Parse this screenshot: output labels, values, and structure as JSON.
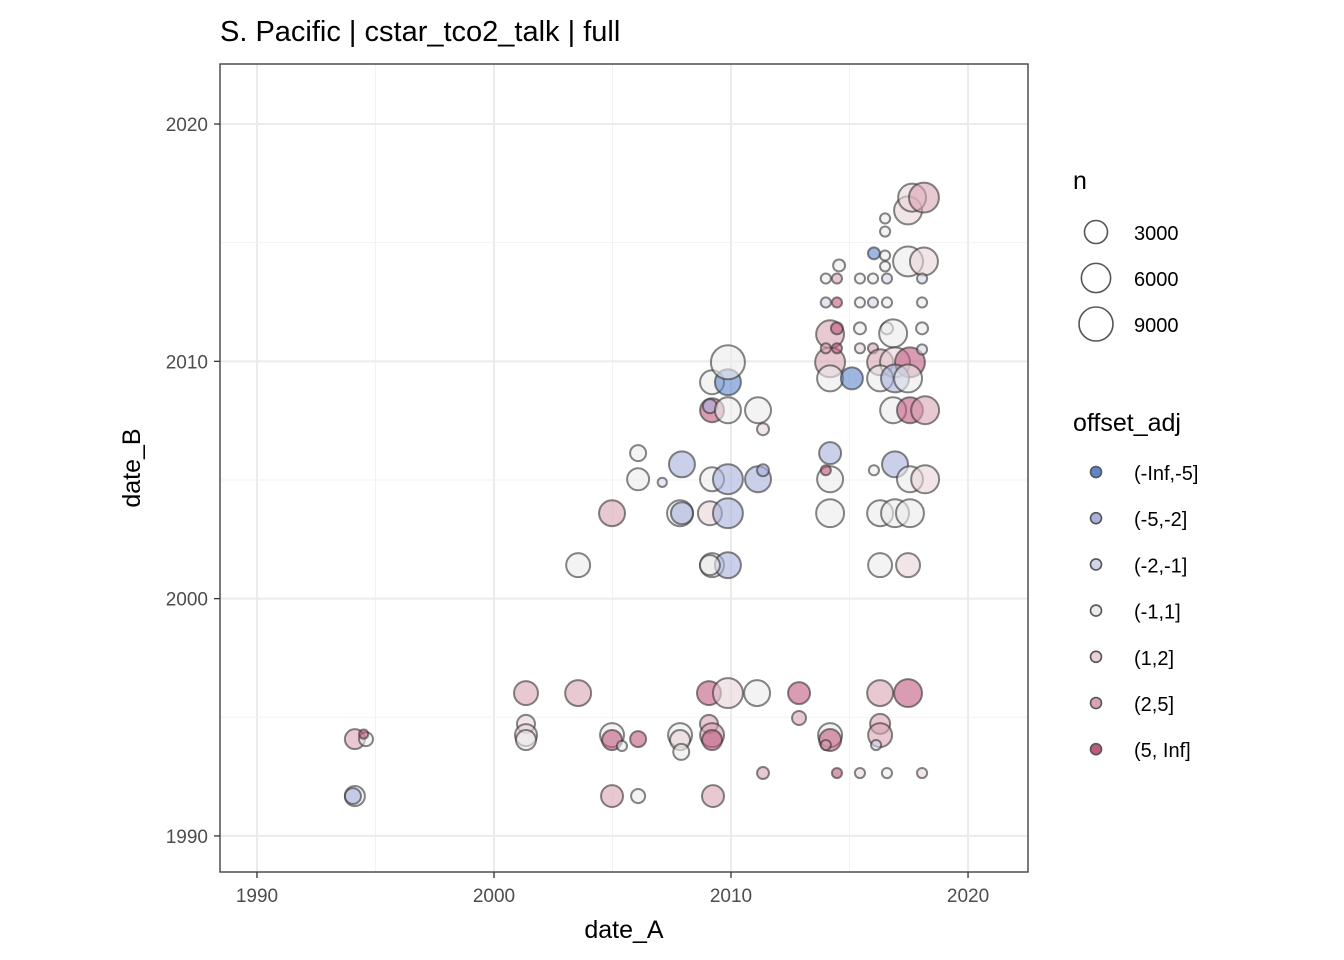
{
  "chart_data": {
    "type": "scatter",
    "title": "S. Pacific | cstar_tco2_talk | full",
    "xlabel": "date_A",
    "ylabel": "date_B",
    "xlim": [
      1988.44,
      2022.53
    ],
    "ylim": [
      1988.48,
      2022.53
    ],
    "xticks": [
      1990,
      2000,
      2010,
      2020
    ],
    "yticks": [
      1990,
      2000,
      2010,
      2020
    ],
    "grid": true,
    "legend_position": "right",
    "size_legend": {
      "title": "n",
      "values": [
        3000,
        6000,
        9000
      ],
      "labels": [
        "3000",
        "6000",
        "9000"
      ]
    },
    "color_legend": {
      "title": "offset_adj",
      "labels": [
        "(-Inf,-5]",
        "(-5,-2]",
        "(-2,-1]",
        "(-1,1]",
        "(1,2]",
        "(2,5]",
        "(5, Inf]"
      ],
      "colors": [
        "#5f86cc",
        "#a9b0dc",
        "#d3d6e8",
        "#ebebeb",
        "#e9d3d9",
        "#d9a3b2",
        "#bf5a80"
      ]
    },
    "point_fields": [
      "date_A",
      "date_B",
      "n",
      "offset_adj_class"
    ],
    "points": [
      [
        1994.13,
        1994.08,
        1920,
        5
      ],
      [
        1994.6,
        1994.08,
        480,
        3
      ],
      [
        1994.5,
        1994.29,
        20,
        6
      ],
      [
        1994.13,
        1991.68,
        1920,
        3
      ],
      [
        1994.05,
        1991.68,
        850,
        1
      ],
      [
        2001.35,
        1996.02,
        3400,
        5
      ],
      [
        2001.35,
        1994.72,
        1330,
        4
      ],
      [
        2001.35,
        1994.25,
        2610,
        4
      ],
      [
        2001.35,
        1994.04,
        1920,
        3
      ],
      [
        2003.55,
        1996.02,
        4300,
        5
      ],
      [
        2004.98,
        1994.25,
        3400,
        3
      ],
      [
        2004.98,
        1994.04,
        1920,
        6
      ],
      [
        2005.4,
        1993.79,
        60,
        3
      ],
      [
        2006.08,
        1994.08,
        850,
        6
      ],
      [
        2004.98,
        1991.68,
        2610,
        5
      ],
      [
        2006.08,
        1991.68,
        480,
        3
      ],
      [
        2007.85,
        1994.25,
        3400,
        3
      ],
      [
        2007.85,
        1994.04,
        1920,
        4
      ],
      [
        2007.9,
        1993.54,
        850,
        3
      ],
      [
        2009.07,
        1996.02,
        3400,
        6
      ],
      [
        2009.87,
        1996.02,
        6400,
        4
      ],
      [
        2011.1,
        1996.02,
        4300,
        3
      ],
      [
        2009.07,
        1994.72,
        1330,
        5
      ],
      [
        2009.2,
        1994.25,
        3400,
        5
      ],
      [
        2009.2,
        1994.04,
        1920,
        6
      ],
      [
        2009.24,
        1991.68,
        2610,
        5
      ],
      [
        2011.35,
        1992.65,
        210,
        5
      ],
      [
        2012.87,
        1996.02,
        2610,
        6
      ],
      [
        2012.87,
        1994.97,
        480,
        5
      ],
      [
        2014.18,
        1994.25,
        3400,
        3
      ],
      [
        2014.18,
        1994.04,
        2610,
        6
      ],
      [
        2014.0,
        1993.83,
        60,
        5
      ],
      [
        2014.47,
        1992.65,
        60,
        6
      ],
      [
        2015.44,
        1992.65,
        60,
        4
      ],
      [
        2016.58,
        1992.65,
        60,
        3
      ],
      [
        2018.06,
        1992.65,
        60,
        4
      ],
      [
        2016.29,
        1996.02,
        4300,
        5
      ],
      [
        2017.47,
        1996.02,
        5300,
        6
      ],
      [
        2016.29,
        1994.72,
        1920,
        5
      ],
      [
        2016.29,
        1994.25,
        3400,
        5
      ],
      [
        2016.12,
        1993.83,
        60,
        2
      ],
      [
        2003.55,
        2001.41,
        3400,
        3
      ],
      [
        2004.98,
        2003.6,
        4300,
        5
      ],
      [
        2006.08,
        2006.13,
        850,
        3
      ],
      [
        2006.08,
        2005.03,
        2610,
        3
      ],
      [
        2007.1,
        2004.9,
        20,
        2
      ],
      [
        2007.93,
        2005.66,
        4300,
        1
      ],
      [
        2007.85,
        2003.6,
        4300,
        3
      ],
      [
        2007.93,
        2003.6,
        2610,
        1
      ],
      [
        2009.11,
        2003.6,
        3400,
        4
      ],
      [
        2009.87,
        2003.6,
        6400,
        1
      ],
      [
        2009.2,
        2005.03,
        3400,
        3
      ],
      [
        2009.87,
        2005.03,
        6400,
        1
      ],
      [
        2011.14,
        2005.03,
        4300,
        1
      ],
      [
        2011.35,
        2005.41,
        210,
        1
      ],
      [
        2009.2,
        2001.41,
        3400,
        3
      ],
      [
        2009.87,
        2001.41,
        4300,
        1
      ],
      [
        2009.11,
        2001.41,
        1920,
        3
      ],
      [
        2009.2,
        2007.94,
        3400,
        6
      ],
      [
        2009.11,
        2008.11,
        480,
        1
      ],
      [
        2009.87,
        2007.94,
        4300,
        3
      ],
      [
        2011.14,
        2007.94,
        4300,
        3
      ],
      [
        2011.35,
        2007.14,
        210,
        4
      ],
      [
        2009.2,
        2009.12,
        3400,
        3
      ],
      [
        2009.87,
        2009.12,
        4300,
        0
      ],
      [
        2009.87,
        2009.96,
        9000,
        3
      ],
      [
        2014.18,
        2006.13,
        2610,
        1
      ],
      [
        2014.18,
        2005.03,
        4300,
        3
      ],
      [
        2014.0,
        2005.41,
        60,
        6
      ],
      [
        2014.18,
        2003.6,
        5300,
        3
      ],
      [
        2014.18,
        2011.14,
        5300,
        5
      ],
      [
        2014.47,
        2011.39,
        210,
        6
      ],
      [
        2014.18,
        2009.96,
        6400,
        5
      ],
      [
        2014.18,
        2009.28,
        4300,
        3
      ],
      [
        2015.1,
        2009.28,
        2610,
        0
      ],
      [
        2014.0,
        2010.55,
        60,
        5
      ],
      [
        2014.47,
        2010.55,
        60,
        6
      ],
      [
        2014.0,
        2012.48,
        60,
        2
      ],
      [
        2014.47,
        2012.48,
        60,
        6
      ],
      [
        2014.0,
        2013.49,
        60,
        3
      ],
      [
        2014.47,
        2013.49,
        60,
        5
      ],
      [
        2014.56,
        2014.04,
        210,
        3
      ],
      [
        2015.44,
        2013.49,
        60,
        3
      ],
      [
        2015.99,
        2013.49,
        60,
        3
      ],
      [
        2016.58,
        2013.49,
        60,
        2
      ],
      [
        2016.03,
        2014.55,
        210,
        0
      ],
      [
        2016.5,
        2014.46,
        60,
        3
      ],
      [
        2016.5,
        2014.0,
        60,
        3
      ],
      [
        2015.44,
        2012.48,
        60,
        3
      ],
      [
        2015.99,
        2012.48,
        60,
        2
      ],
      [
        2016.58,
        2012.48,
        60,
        3
      ],
      [
        2015.44,
        2011.39,
        210,
        3
      ],
      [
        2016.58,
        2011.39,
        210,
        3
      ],
      [
        2016.84,
        2011.18,
        5300,
        3
      ],
      [
        2018.06,
        2011.39,
        210,
        3
      ],
      [
        2015.44,
        2010.55,
        60,
        4
      ],
      [
        2015.99,
        2010.55,
        60,
        5
      ],
      [
        2016.5,
        2016.02,
        60,
        3
      ],
      [
        2016.5,
        2015.47,
        60,
        3
      ],
      [
        2017.47,
        2014.21,
        6400,
        3
      ],
      [
        2018.14,
        2014.21,
        5300,
        4
      ],
      [
        2018.06,
        2013.49,
        60,
        2
      ],
      [
        2018.06,
        2012.48,
        60,
        3
      ],
      [
        2017.47,
        2016.36,
        5300,
        4
      ],
      [
        2017.64,
        2016.9,
        5300,
        4
      ],
      [
        2018.14,
        2016.9,
        6400,
        5
      ],
      [
        2016.29,
        2009.96,
        4300,
        5
      ],
      [
        2016.92,
        2009.96,
        6400,
        4
      ],
      [
        2017.55,
        2009.96,
        6400,
        6
      ],
      [
        2018.06,
        2010.5,
        60,
        2
      ],
      [
        2016.29,
        2009.28,
        4300,
        3
      ],
      [
        2016.92,
        2009.28,
        5300,
        1
      ],
      [
        2017.47,
        2009.28,
        5300,
        3
      ],
      [
        2016.84,
        2007.94,
        4300,
        3
      ],
      [
        2017.55,
        2007.94,
        4300,
        6
      ],
      [
        2018.19,
        2007.94,
        5300,
        5
      ],
      [
        2016.03,
        2005.41,
        60,
        3
      ],
      [
        2016.92,
        2005.66,
        4300,
        1
      ],
      [
        2017.55,
        2005.03,
        4300,
        3
      ],
      [
        2018.19,
        2005.03,
        5300,
        4
      ],
      [
        2016.29,
        2003.6,
        4300,
        3
      ],
      [
        2016.92,
        2003.6,
        5300,
        3
      ],
      [
        2017.55,
        2003.6,
        5300,
        3
      ],
      [
        2016.29,
        2001.41,
        3400,
        3
      ],
      [
        2017.47,
        2001.41,
        3400,
        4
      ]
    ]
  }
}
